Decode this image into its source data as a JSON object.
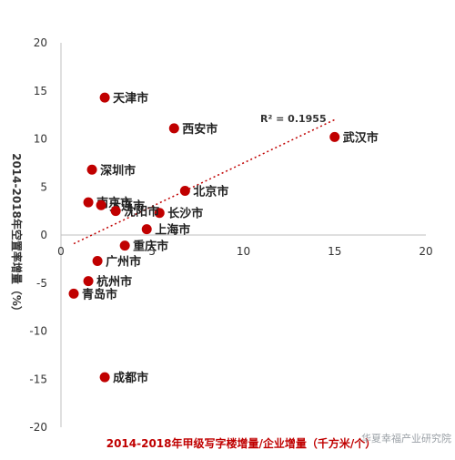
{
  "chart_data": {
    "type": "scatter",
    "xlabel": "2014-2018年甲级写字楼增量/企业增量（千方米/个）",
    "ylabel": "2014-2018年空置率增量（%）",
    "xlim": [
      0,
      20
    ],
    "ylim": [
      -20,
      20
    ],
    "x_ticks": [
      "0",
      "5",
      "10",
      "15",
      "20"
    ],
    "y_ticks": [
      "20",
      "15",
      "10",
      "5",
      "0",
      "-5",
      "-10",
      "-15",
      "-20"
    ],
    "grid": false,
    "trendline": {
      "type": "linear",
      "r2_label": "R² = 0.1955",
      "x": [
        0.7,
        15.0
      ],
      "y": [
        -0.9,
        12.0
      ]
    },
    "points": [
      {
        "name": "天津市",
        "x": 2.4,
        "y": 14.3
      },
      {
        "name": "西安市",
        "x": 6.2,
        "y": 11.1
      },
      {
        "name": "武汉市",
        "x": 15.0,
        "y": 10.2
      },
      {
        "name": "深圳市",
        "x": 1.7,
        "y": 6.8
      },
      {
        "name": "北京市",
        "x": 6.8,
        "y": 4.6
      },
      {
        "name": "南京市",
        "x": 1.5,
        "y": 3.4
      },
      {
        "name": "大连市",
        "x": 2.2,
        "y": 3.1
      },
      {
        "name": "长沙市",
        "x": 5.4,
        "y": 2.3
      },
      {
        "name": "沈阳市",
        "x": 3.0,
        "y": 2.5
      },
      {
        "name": "上海市",
        "x": 4.7,
        "y": 0.6
      },
      {
        "name": "重庆市",
        "x": 3.5,
        "y": -1.1
      },
      {
        "name": "广州市",
        "x": 2.0,
        "y": -2.7
      },
      {
        "name": "杭州市",
        "x": 1.5,
        "y": -4.8
      },
      {
        "name": "青岛市",
        "x": 0.7,
        "y": -6.1
      },
      {
        "name": "成都市",
        "x": 2.4,
        "y": -14.8
      }
    ],
    "marker_color": "#c00000",
    "trend_color": "#c00000"
  },
  "watermark": "华夏幸福产业研究院"
}
